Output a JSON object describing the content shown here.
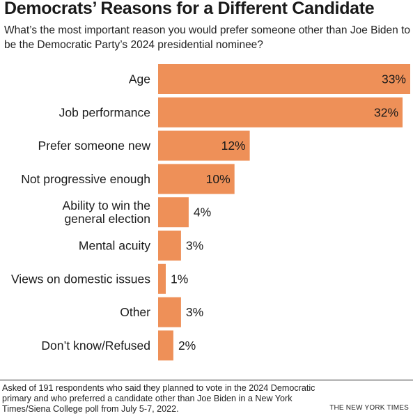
{
  "header": {
    "title": "Democrats’ Reasons for a Different Candidate",
    "subtitle": "What’s the most important reason you would prefer someone other than Joe Biden to be the Democratic Party’s 2024 presidential nominee?"
  },
  "footer": {
    "note": "Asked of 191 respondents who said they planned to vote in the 2024 Democratic primary and who preferred a candidate other than Joe Biden in a New York Times/Siena College poll from July 5-7, 2022.",
    "credit": "THE NEW YORK TIMES"
  },
  "colors": {
    "bar": "#ee9058",
    "text": "#1a1a1a"
  },
  "chart_data": {
    "type": "bar",
    "orientation": "horizontal",
    "unit": "%",
    "xlim": [
      0,
      33
    ],
    "grid": false,
    "categories": [
      "Age",
      "Job performance",
      "Prefer someone new",
      "Not progressive enough",
      "Ability to win the general election",
      "Mental acuity",
      "Views on domestic issues",
      "Other",
      "Don’t know/Refused"
    ],
    "category_lines": [
      [
        "Age"
      ],
      [
        "Job performance"
      ],
      [
        "Prefer someone new"
      ],
      [
        "Not progressive enough"
      ],
      [
        "Ability to win the",
        "general election"
      ],
      [
        "Mental acuity"
      ],
      [
        "Views on domestic issues"
      ],
      [
        "Other"
      ],
      [
        "Don’t know/Refused"
      ]
    ],
    "values": [
      33,
      32,
      12,
      10,
      4,
      3,
      1,
      3,
      2
    ],
    "labels": [
      "33%",
      "32%",
      "12%",
      "10%",
      "4%",
      "3%",
      "1%",
      "3%",
      "2%"
    ]
  }
}
